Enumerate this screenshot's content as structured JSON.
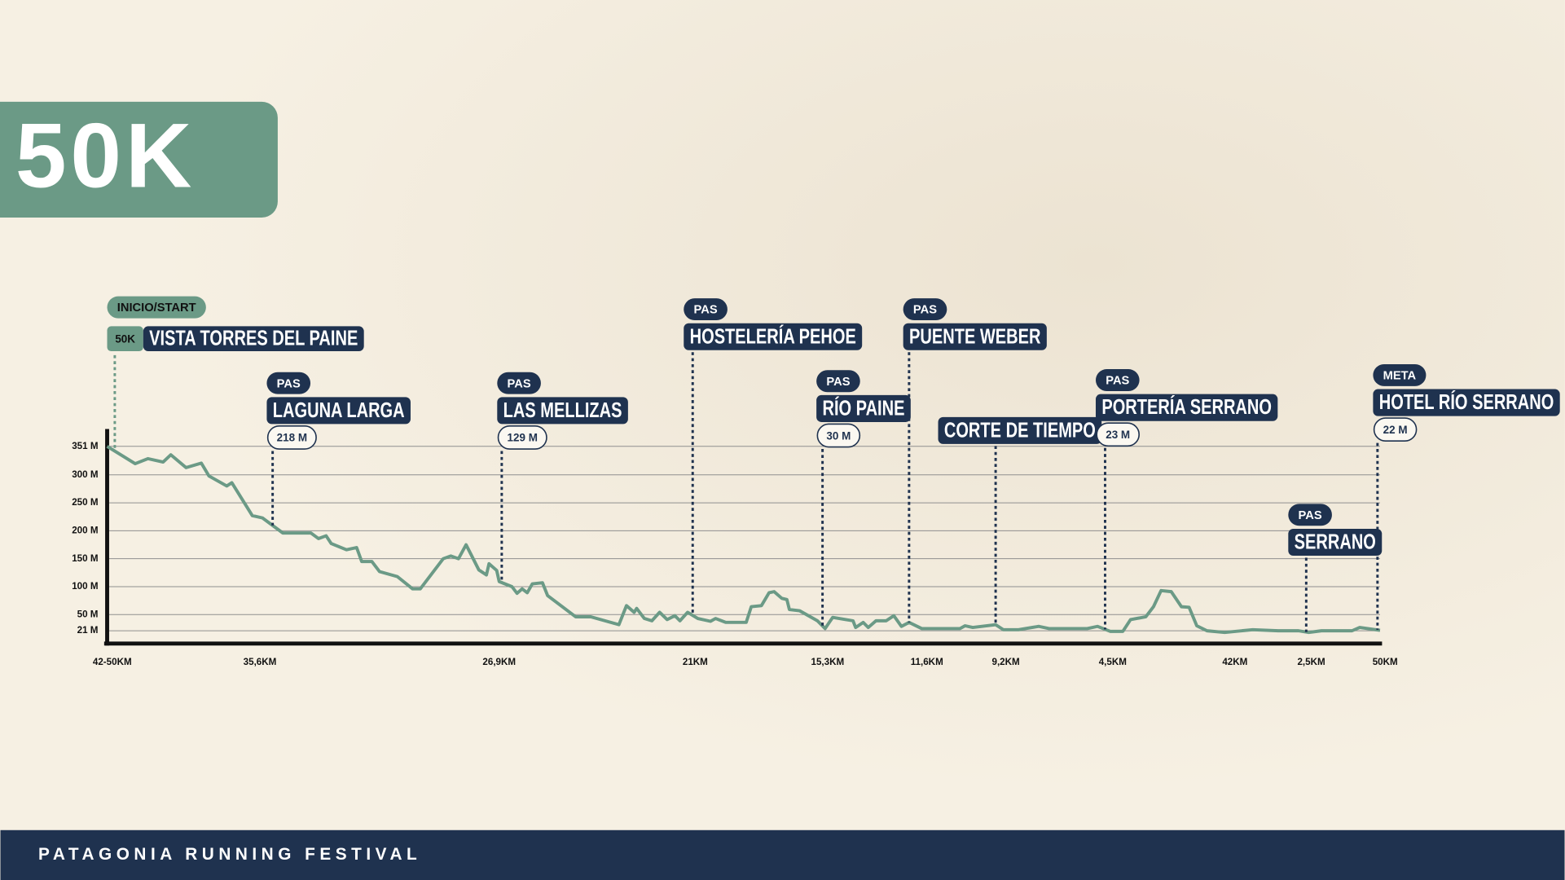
{
  "title": "50K",
  "footer": "PATAGONIA RUNNING FESTIVAL",
  "chart_data": {
    "type": "line",
    "color": "#6b9a86",
    "grid": true,
    "xlim": [
      0,
      50
    ],
    "ylim": [
      0,
      382
    ],
    "yticks": [
      {
        "value": 351,
        "label": "351 M"
      },
      {
        "value": 300,
        "label": "300 M"
      },
      {
        "value": 250,
        "label": "250 M"
      },
      {
        "value": 200,
        "label": "200 M"
      },
      {
        "value": 150,
        "label": "150 M"
      },
      {
        "value": 100,
        "label": "100 M"
      },
      {
        "value": 50,
        "label": "50 M"
      },
      {
        "value": 21,
        "label": "21 M"
      }
    ],
    "xticks": [
      {
        "value": 0.2,
        "label": "42-50KM"
      },
      {
        "value": 6.0,
        "label": "35,6KM"
      },
      {
        "value": 15.4,
        "label": "26,9KM"
      },
      {
        "value": 23.1,
        "label": "21KM"
      },
      {
        "value": 28.3,
        "label": "15,3KM"
      },
      {
        "value": 32.2,
        "label": "11,6KM"
      },
      {
        "value": 35.3,
        "label": "9,2KM"
      },
      {
        "value": 39.5,
        "label": "4,5KM"
      },
      {
        "value": 44.3,
        "label": "42KM"
      },
      {
        "value": 47.3,
        "label": "2,5KM"
      },
      {
        "value": 50.2,
        "label": "50KM"
      }
    ],
    "x": [
      0,
      1.1,
      1.6,
      2.2,
      2.5,
      3.1,
      3.7,
      4.0,
      4.7,
      4.9,
      5.7,
      6.1,
      6.9,
      8.0,
      8.3,
      8.6,
      8.8,
      9.4,
      9.8,
      10.0,
      10.4,
      10.7,
      11.4,
      12.0,
      12.3,
      13.2,
      13.5,
      13.8,
      14.1,
      14.3,
      14.6,
      14.9,
      15.0,
      15.3,
      15.4,
      15.9,
      16.1,
      16.3,
      16.5,
      16.7,
      17.1,
      17.3,
      18.4,
      19.0,
      20.1,
      20.4,
      20.7,
      20.8,
      21.1,
      21.4,
      21.7,
      22.0,
      22.3,
      22.5,
      22.8,
      23.2,
      23.7,
      23.9,
      24.3,
      25.1,
      25.3,
      25.7,
      26.0,
      26.2,
      26.5,
      26.7,
      26.8,
      27.2,
      27.9,
      28.2,
      28.5,
      29.3,
      29.4,
      29.7,
      29.9,
      30.2,
      30.6,
      30.9,
      31.2,
      31.5,
      32.0,
      33.5,
      33.7,
      34.0,
      34.9,
      35.2,
      35.8,
      36.6,
      37.0,
      38.5,
      38.9,
      39.4,
      39.9,
      40.2,
      40.8,
      41.1,
      41.4,
      41.8,
      42.2,
      42.5,
      42.8,
      43.2,
      43.9,
      45.0,
      46.0,
      46.8,
      47.2,
      47.7,
      48.9,
      49.2,
      50.0
    ],
    "values": [
      351,
      320,
      329,
      323,
      336,
      313,
      321,
      298,
      280,
      286,
      227,
      223,
      196,
      196,
      186,
      191,
      177,
      166,
      170,
      145,
      145,
      127,
      118,
      96,
      96,
      150,
      155,
      150,
      175,
      157,
      130,
      121,
      141,
      129,
      109,
      100,
      88,
      96,
      89,
      105,
      107,
      84,
      46,
      46,
      32,
      66,
      54,
      61,
      43,
      39,
      54,
      41,
      48,
      39,
      54,
      43,
      38,
      43,
      36,
      36,
      64,
      66,
      89,
      91,
      79,
      77,
      59,
      57,
      39,
      25,
      45,
      39,
      27,
      36,
      27,
      39,
      39,
      48,
      29,
      36,
      25,
      25,
      30,
      27,
      32,
      23,
      23,
      29,
      25,
      25,
      29,
      20,
      20,
      41,
      46,
      64,
      93,
      91,
      64,
      63,
      30,
      21,
      18,
      23,
      21,
      21,
      18,
      21,
      21,
      27,
      22
    ],
    "annotations": [
      {
        "x": 0.3,
        "tag": "INICIO/START",
        "badge": "50K",
        "name": "VISTA TORRES DEL PAINE"
      },
      {
        "x": 6.5,
        "tag": "PAS",
        "name": "LAGUNA LARGA",
        "elevation": "218 M"
      },
      {
        "x": 15.5,
        "tag": "PAS",
        "name": "LAS MELLIZAS",
        "elevation": "129 M"
      },
      {
        "x": 23.0,
        "tag": "PAS",
        "name": "HOSTELERÍA PEHOE"
      },
      {
        "x": 28.1,
        "tag": "PAS",
        "name": "RÍO PAINE",
        "elevation": "30 M"
      },
      {
        "x": 31.5,
        "tag": "PAS",
        "name": "PUENTE WEBER"
      },
      {
        "x": 34.9,
        "name": "CORTE DE TIEMPO"
      },
      {
        "x": 39.2,
        "tag": "PAS",
        "name": "PORTERÍA SERRANO",
        "elevation": "23 M"
      },
      {
        "x": 47.1,
        "tag": "PAS",
        "name": "SERRANO"
      },
      {
        "x": 49.9,
        "tag": "META",
        "name": "HOTEL RÍO SERRANO",
        "elevation": "22 M"
      }
    ]
  }
}
